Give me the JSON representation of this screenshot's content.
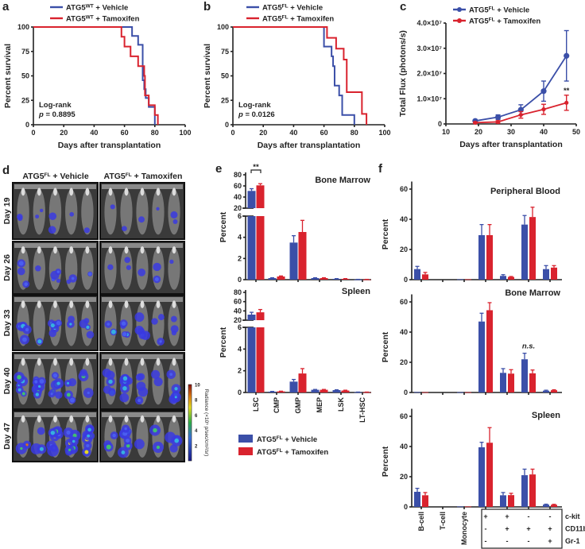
{
  "figure": {
    "panel_labels": [
      "a",
      "b",
      "c",
      "d",
      "e",
      "f"
    ]
  },
  "colors": {
    "vehicle": "#3b4fa8",
    "tamoxifen": "#d9232e"
  },
  "chart_data": [
    {
      "id": "a",
      "type": "line",
      "subtype": "kaplan-meier step",
      "xlabel": "Days after transplantation",
      "ylabel": "Percent survival",
      "xlim": [
        0,
        100
      ],
      "ylim": [
        0,
        100
      ],
      "xticks": [
        0,
        20,
        40,
        60,
        80,
        100
      ],
      "yticks": [
        0,
        25,
        50,
        75,
        100
      ],
      "annotation": [
        "Log-rank",
        "p = 0.8895"
      ],
      "series": [
        {
          "gene": "ATG5",
          "sup": "WT",
          "treatment": " + Vehicle",
          "color": "#3b4fa8",
          "steps": [
            [
              65,
              90.9
            ],
            [
              69,
              81.8
            ],
            [
              72,
              45.5
            ],
            [
              73,
              36.4
            ],
            [
              74,
              27.3
            ],
            [
              76,
              18.2
            ],
            [
              80,
              0
            ]
          ]
        },
        {
          "gene": "ATG5",
          "sup": "WT",
          "treatment": " + Tamoxifen",
          "color": "#d9232e",
          "steps": [
            [
              58,
              90
            ],
            [
              60,
              80
            ],
            [
              64,
              70
            ],
            [
              69,
              60
            ],
            [
              73,
              50
            ],
            [
              73.5,
              30
            ],
            [
              76,
              20
            ],
            [
              80,
              10
            ],
            [
              82,
              0
            ]
          ]
        }
      ]
    },
    {
      "id": "b",
      "type": "line",
      "subtype": "kaplan-meier step",
      "xlabel": "Days after transplantation",
      "ylabel": "Percent survival",
      "xlim": [
        0,
        100
      ],
      "ylim": [
        0,
        100
      ],
      "xticks": [
        0,
        20,
        40,
        60,
        80,
        100
      ],
      "yticks": [
        0,
        25,
        50,
        75,
        100
      ],
      "annotation": [
        "Log-rank",
        "p = 0.0126"
      ],
      "series": [
        {
          "gene": "ATG5",
          "sup": "FL",
          "treatment": " + Vehicle",
          "color": "#3b4fa8",
          "steps": [
            [
              60,
              80
            ],
            [
              65,
              70
            ],
            [
              66,
              60
            ],
            [
              67,
              40
            ],
            [
              70,
              30
            ],
            [
              72,
              10
            ],
            [
              80,
              0
            ]
          ]
        },
        {
          "gene": "ATG5",
          "sup": "FL",
          "treatment": " + Tamoxifen",
          "color": "#d9232e",
          "steps": [
            [
              62,
              88.9
            ],
            [
              68,
              77.8
            ],
            [
              73,
              66.7
            ],
            [
              75,
              33.3
            ],
            [
              85,
              11.1
            ],
            [
              88,
              0
            ]
          ]
        }
      ]
    },
    {
      "id": "c",
      "type": "line",
      "subtype": "line with error bars",
      "xlabel": "Days after transplantation",
      "ylabel": "Total Flux (photons/s)",
      "xlim": [
        10,
        50
      ],
      "ylim": [
        0,
        40000000
      ],
      "xticks": [
        10,
        20,
        30,
        40,
        50
      ],
      "yticks": [
        0,
        10000000,
        20000000,
        30000000,
        40000000
      ],
      "ytick_labels": [
        "0",
        "1.0×10⁷",
        "2.0×10⁷",
        "3.0×10⁷",
        "4.0×10⁷"
      ],
      "significance": {
        "x": 47,
        "label": "**"
      },
      "x": [
        19,
        26,
        33,
        40,
        47
      ],
      "series": [
        {
          "gene": "ATG5",
          "sup": "FL",
          "treatment": " + Vehicle",
          "color": "#3b4fa8",
          "values": [
            1200000,
            2700000,
            5600000,
            13000000,
            27000000
          ],
          "errors": [
            400000,
            900000,
            2000000,
            4000000,
            10000000
          ]
        },
        {
          "gene": "ATG5",
          "sup": "FL",
          "treatment": " + Tamoxifen",
          "color": "#d9232e",
          "values": [
            500000,
            800000,
            3600000,
            5800000,
            8400000
          ],
          "errors": [
            300000,
            500000,
            1300000,
            2000000,
            3000000
          ]
        }
      ]
    },
    {
      "id": "e",
      "type": "bar",
      "subtype": "grouped bar, broken y axis",
      "ylabel": "Percent",
      "categories": [
        "LSC",
        "CMP",
        "GMP",
        "MEP",
        "LSK",
        "LT-HSC"
      ],
      "yticks_upper": [
        20,
        40,
        60,
        80
      ],
      "yticks_lower": [
        0,
        2,
        4,
        6
      ],
      "legend": [
        {
          "gene": "ATG5",
          "sup": "FL",
          "treatment": " + Vehicle",
          "color": "#3b4fa8"
        },
        {
          "gene": "ATG5",
          "sup": "FL",
          "treatment": " + Tamoxifen",
          "color": "#d9232e"
        }
      ],
      "panels": [
        {
          "title": "Bone Marrow",
          "vehicle": [
            51,
            0.15,
            3.5,
            0.15,
            0.08,
            0.02
          ],
          "vehicle_err": [
            4,
            0.03,
            0.65,
            0.03,
            0.02,
            0.01
          ],
          "tamoxifen": [
            61,
            0.3,
            4.5,
            0.15,
            0.08,
            0.02
          ],
          "tamoxifen_err": [
            3,
            0.05,
            1.1,
            0.03,
            0.02,
            0.01
          ],
          "significance": {
            "category": "LSC",
            "label": "**"
          }
        },
        {
          "title": "Spleen",
          "vehicle": [
            32,
            0.08,
            1.0,
            0.25,
            0.22,
            0.03
          ],
          "vehicle_err": [
            5,
            0.02,
            0.2,
            0.03,
            0.03,
            0.01
          ],
          "tamoxifen": [
            37,
            0.1,
            1.75,
            0.25,
            0.18,
            0.03
          ],
          "tamoxifen_err": [
            6,
            0.02,
            0.45,
            0.03,
            0.03,
            0.01
          ]
        }
      ]
    },
    {
      "id": "f",
      "type": "bar",
      "subtype": "grouped bar",
      "ylabel": "Percent",
      "ylim": [
        0,
        65
      ],
      "yticks": [
        0,
        20,
        40,
        60
      ],
      "categories": [
        "B-cell",
        "T-cell",
        "Monocyte",
        "",
        "",
        "",
        ""
      ],
      "marker_table": {
        "rows": [
          {
            "marker": "c-kit",
            "signs": [
              "+",
              "+",
              "-",
              "-"
            ]
          },
          {
            "marker": "CD11b",
            "signs": [
              "-",
              "+",
              "+",
              "+"
            ]
          },
          {
            "marker": "Gr-1",
            "signs": [
              "-",
              "-",
              "-",
              "+"
            ]
          }
        ]
      },
      "panels": [
        {
          "title": "Peripheral Blood",
          "vehicle": [
            7,
            0,
            0.3,
            29.5,
            2.5,
            36.5,
            7
          ],
          "vehicle_err": [
            1.8,
            0,
            0.1,
            7,
            0.8,
            6,
            2.3
          ],
          "tamoxifen": [
            3.5,
            0,
            0.3,
            29.5,
            1.8,
            41.5,
            8
          ],
          "tamoxifen_err": [
            1.3,
            0,
            0.1,
            7,
            0.3,
            6.5,
            1.3
          ]
        },
        {
          "title": "Bone Marrow",
          "vehicle": [
            0.3,
            0,
            0.2,
            47,
            13,
            22,
            1.2
          ],
          "vehicle_err": [
            0.1,
            0,
            0.1,
            5.5,
            2.8,
            4,
            0.3
          ],
          "tamoxifen": [
            0.2,
            0,
            0.2,
            54.5,
            12.5,
            12.7,
            1.5
          ],
          "tamoxifen_err": [
            0.1,
            0,
            0.1,
            5,
            2.6,
            2.2,
            0.3
          ],
          "significance": {
            "category_index": 5,
            "label": "n.s."
          }
        },
        {
          "title": "Spleen",
          "vehicle": [
            10,
            0,
            0.3,
            39.5,
            7.7,
            21,
            1.5
          ],
          "vehicle_err": [
            2.3,
            0,
            0.1,
            3.3,
            1.8,
            4,
            0.3
          ],
          "tamoxifen": [
            7.7,
            0,
            0.3,
            42.5,
            7.8,
            21.5,
            1.4
          ],
          "tamoxifen_err": [
            1.8,
            0,
            0.1,
            10,
            1.2,
            3.5,
            0.3
          ]
        }
      ]
    }
  ],
  "imaging": {
    "columns": [
      {
        "gene": "ATG5",
        "sup": "FL",
        "treatment": " + Vehicle"
      },
      {
        "gene": "ATG5",
        "sup": "FL",
        "treatment": " + Tamoxifen"
      }
    ],
    "rows": [
      "Day 19",
      "Day 26",
      "Day 33",
      "Day 40",
      "Day 47"
    ],
    "mice_per_group": 5,
    "colorbar": {
      "label": "Radiance (×10⁵ p/sec/cm²/sr)",
      "ticks": [
        2,
        4,
        6,
        8,
        10
      ]
    }
  }
}
